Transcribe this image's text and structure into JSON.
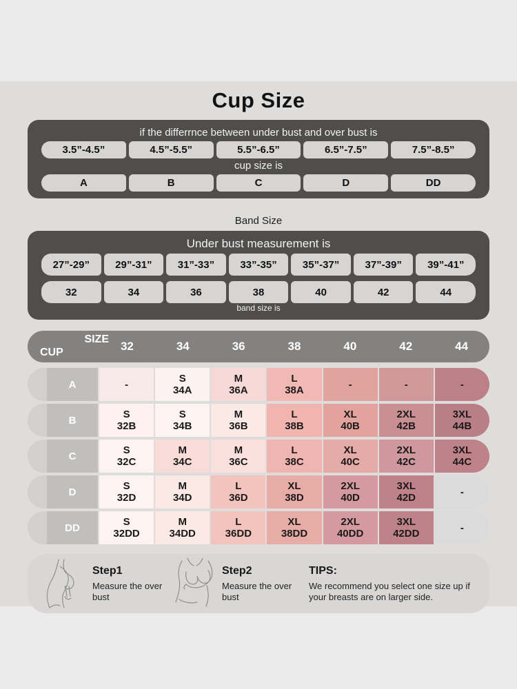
{
  "title": "Cup Size",
  "colors": {
    "page_bg": "#ebebeb",
    "band_bg": "#dedddb",
    "dark_panel": "#4f4e4c",
    "pill_bg": "#d7d5d3",
    "matrix_header_bg": "#848280",
    "row_cap_bg": "#d2d1d0",
    "row_label_bg": "#c0bfbe",
    "footer_panel_bg": "#d9d7d5"
  },
  "cup_table": {
    "header": "if the differrnce between under bust and over bust is",
    "ranges": [
      "3.5”-4.5”",
      "4.5”-5.5”",
      "5.5”-6.5”",
      "6.5”-7.5”",
      "7.5”-8.5”"
    ],
    "mid_label": "cup size is",
    "cups": [
      "A",
      "B",
      "C",
      "D",
      "DD"
    ]
  },
  "band_section": {
    "title": "Band Size",
    "header": "Under bust measurement is",
    "ranges": [
      "27”-29”",
      "29”-31”",
      "31”-33”",
      "33”-35”",
      "35”-37”",
      "37”-39”",
      "39”-41”"
    ],
    "sizes": [
      "32",
      "34",
      "36",
      "38",
      "40",
      "42",
      "44"
    ],
    "footer": "band size is"
  },
  "matrix": {
    "corner_top": "SIZE",
    "corner_bottom": "CUP",
    "columns": [
      "32",
      "34",
      "36",
      "38",
      "40",
      "42",
      "44"
    ],
    "rows": [
      {
        "cup": "A",
        "cells": [
          {
            "size": "-",
            "code": "",
            "bg": "#f8eae8"
          },
          {
            "size": "S",
            "code": "34A",
            "bg": "#fcf2f0"
          },
          {
            "size": "M",
            "code": "36A",
            "bg": "#f6d9d6"
          },
          {
            "size": "L",
            "code": "38A",
            "bg": "#f2b9b4"
          },
          {
            "size": "-",
            "code": "",
            "bg": "#e0a39e"
          },
          {
            "size": "-",
            "code": "",
            "bg": "#d09a9a"
          },
          {
            "size": "-",
            "code": "",
            "bg": "#bd8088"
          }
        ]
      },
      {
        "cup": "B",
        "cells": [
          {
            "size": "S",
            "code": "32B",
            "bg": "#fdf2f0"
          },
          {
            "size": "S",
            "code": "34B",
            "bg": "#fdf4f2"
          },
          {
            "size": "M",
            "code": "36B",
            "bg": "#fbe9e6"
          },
          {
            "size": "L",
            "code": "38B",
            "bg": "#f1b4af"
          },
          {
            "size": "XL",
            "code": "40B",
            "bg": "#e2a29d"
          },
          {
            "size": "2XL",
            "code": "42B",
            "bg": "#c98f93"
          },
          {
            "size": "3XL",
            "code": "44B",
            "bg": "#b97f86"
          }
        ]
      },
      {
        "cup": "C",
        "cells": [
          {
            "size": "S",
            "code": "32C",
            "bg": "#fdf4f2"
          },
          {
            "size": "M",
            "code": "34C",
            "bg": "#f8dcd8"
          },
          {
            "size": "M",
            "code": "36C",
            "bg": "#f9e0dc"
          },
          {
            "size": "L",
            "code": "38C",
            "bg": "#f0b5b0"
          },
          {
            "size": "XL",
            "code": "40C",
            "bg": "#e5aba6"
          },
          {
            "size": "2XL",
            "code": "42C",
            "bg": "#ce989e"
          },
          {
            "size": "3XL",
            "code": "44C",
            "bg": "#c08289"
          }
        ]
      },
      {
        "cup": "D",
        "cells": [
          {
            "size": "S",
            "code": "32D",
            "bg": "#fdf3f1"
          },
          {
            "size": "M",
            "code": "34D",
            "bg": "#fbe9e5"
          },
          {
            "size": "L",
            "code": "36D",
            "bg": "#f3c3bd"
          },
          {
            "size": "XL",
            "code": "38D",
            "bg": "#e8aca7"
          },
          {
            "size": "2XL",
            "code": "40D",
            "bg": "#d49aa0"
          },
          {
            "size": "3XL",
            "code": "42D",
            "bg": "#c08289"
          },
          {
            "size": "-",
            "code": "",
            "bg": "#dadbda"
          }
        ]
      },
      {
        "cup": "DD",
        "cells": [
          {
            "size": "S",
            "code": "32DD",
            "bg": "#fdf3f1"
          },
          {
            "size": "M",
            "code": "34DD",
            "bg": "#fbe9e5"
          },
          {
            "size": "L",
            "code": "36DD",
            "bg": "#f3c3bd"
          },
          {
            "size": "XL",
            "code": "38DD",
            "bg": "#e8aca7"
          },
          {
            "size": "2XL",
            "code": "40DD",
            "bg": "#d49aa0"
          },
          {
            "size": "3XL",
            "code": "42DD",
            "bg": "#c08289"
          },
          {
            "size": "-",
            "code": "",
            "bg": "#dadbda"
          }
        ]
      }
    ]
  },
  "footer": {
    "steps": [
      {
        "title": "Step1",
        "text": "Measure the over bust"
      },
      {
        "title": "Step2",
        "text": "Measure the over bust"
      }
    ],
    "tips_title": "TIPS:",
    "tips_text": "We recommend you select one size up if your breasts are on larger side."
  }
}
